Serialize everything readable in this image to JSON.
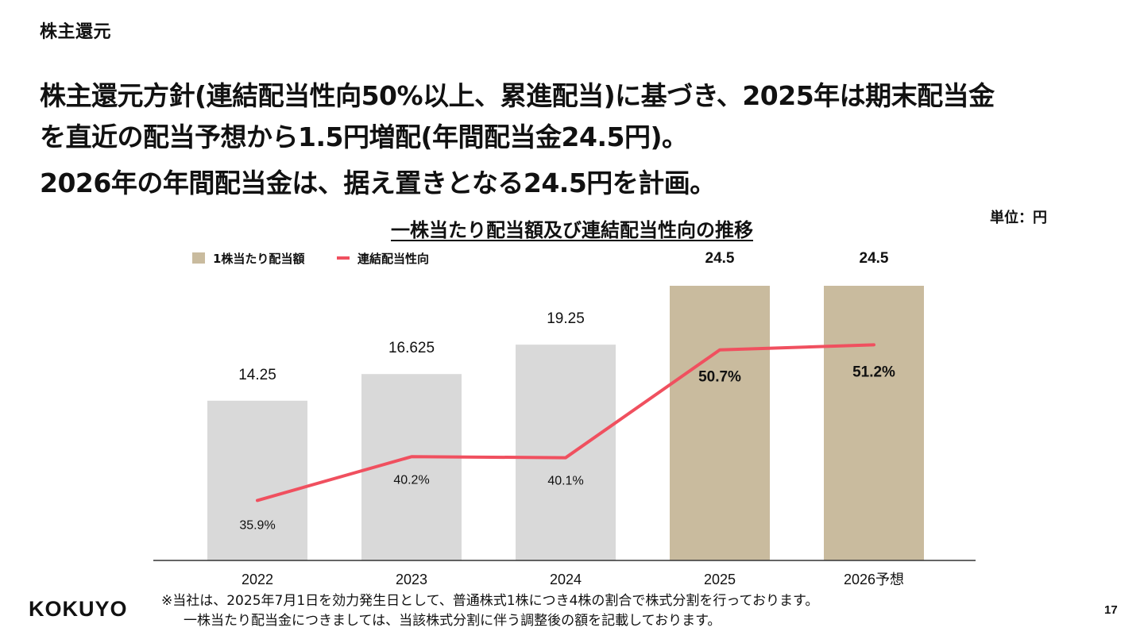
{
  "section_title": "株主還元",
  "headline": {
    "line1": "株主還元方針(連結配当性向50%以上、累進配当)に基づき、2025年は期末配当金",
    "line2": "を直近の配当予想から1.5円増配(年間配当金24.5円)。",
    "line3": "2026年の年間配当金は、据え置きとなる24.5円を計画。"
  },
  "unit_label": "単位：円",
  "footnote": {
    "line1": "※当社は、2025年7月1日を効力発生日として、普通株式1株につき4株の割合で株式分割を行っております。",
    "line2": "一株当たり配当金につきましては、当該株式分割に伴う調整後の額を記載しております。"
  },
  "logo_text": "KOKUYO",
  "page_number": "17",
  "colors": {
    "bar_actual": "#d9d9d9",
    "bar_forecast": "#c9bb9e",
    "line": "#f0505f",
    "axis": "#333333"
  },
  "chart_data": {
    "type": "bar",
    "title": "一株当たり配当額及び連結配当性向の推移",
    "categories": [
      "2022",
      "2023",
      "2024",
      "2025",
      "2026予想"
    ],
    "series": [
      {
        "name": "1株当たり配当額",
        "type": "bar",
        "values": [
          14.25,
          16.625,
          19.25,
          24.5,
          24.5
        ],
        "value_labels": [
          "14.25",
          "16.625",
          "19.25",
          "24.5",
          "24.5"
        ]
      },
      {
        "name": "連結配当性向",
        "type": "line",
        "values": [
          35.9,
          40.2,
          40.1,
          50.7,
          51.2
        ],
        "value_labels": [
          "35.9%",
          "40.2%",
          "40.1%",
          "50.7%",
          "51.2%"
        ]
      }
    ],
    "bar_ylim": [
      0,
      28
    ],
    "line_ylim": [
      30,
      57
    ],
    "legend": "top-left",
    "grid": false
  }
}
